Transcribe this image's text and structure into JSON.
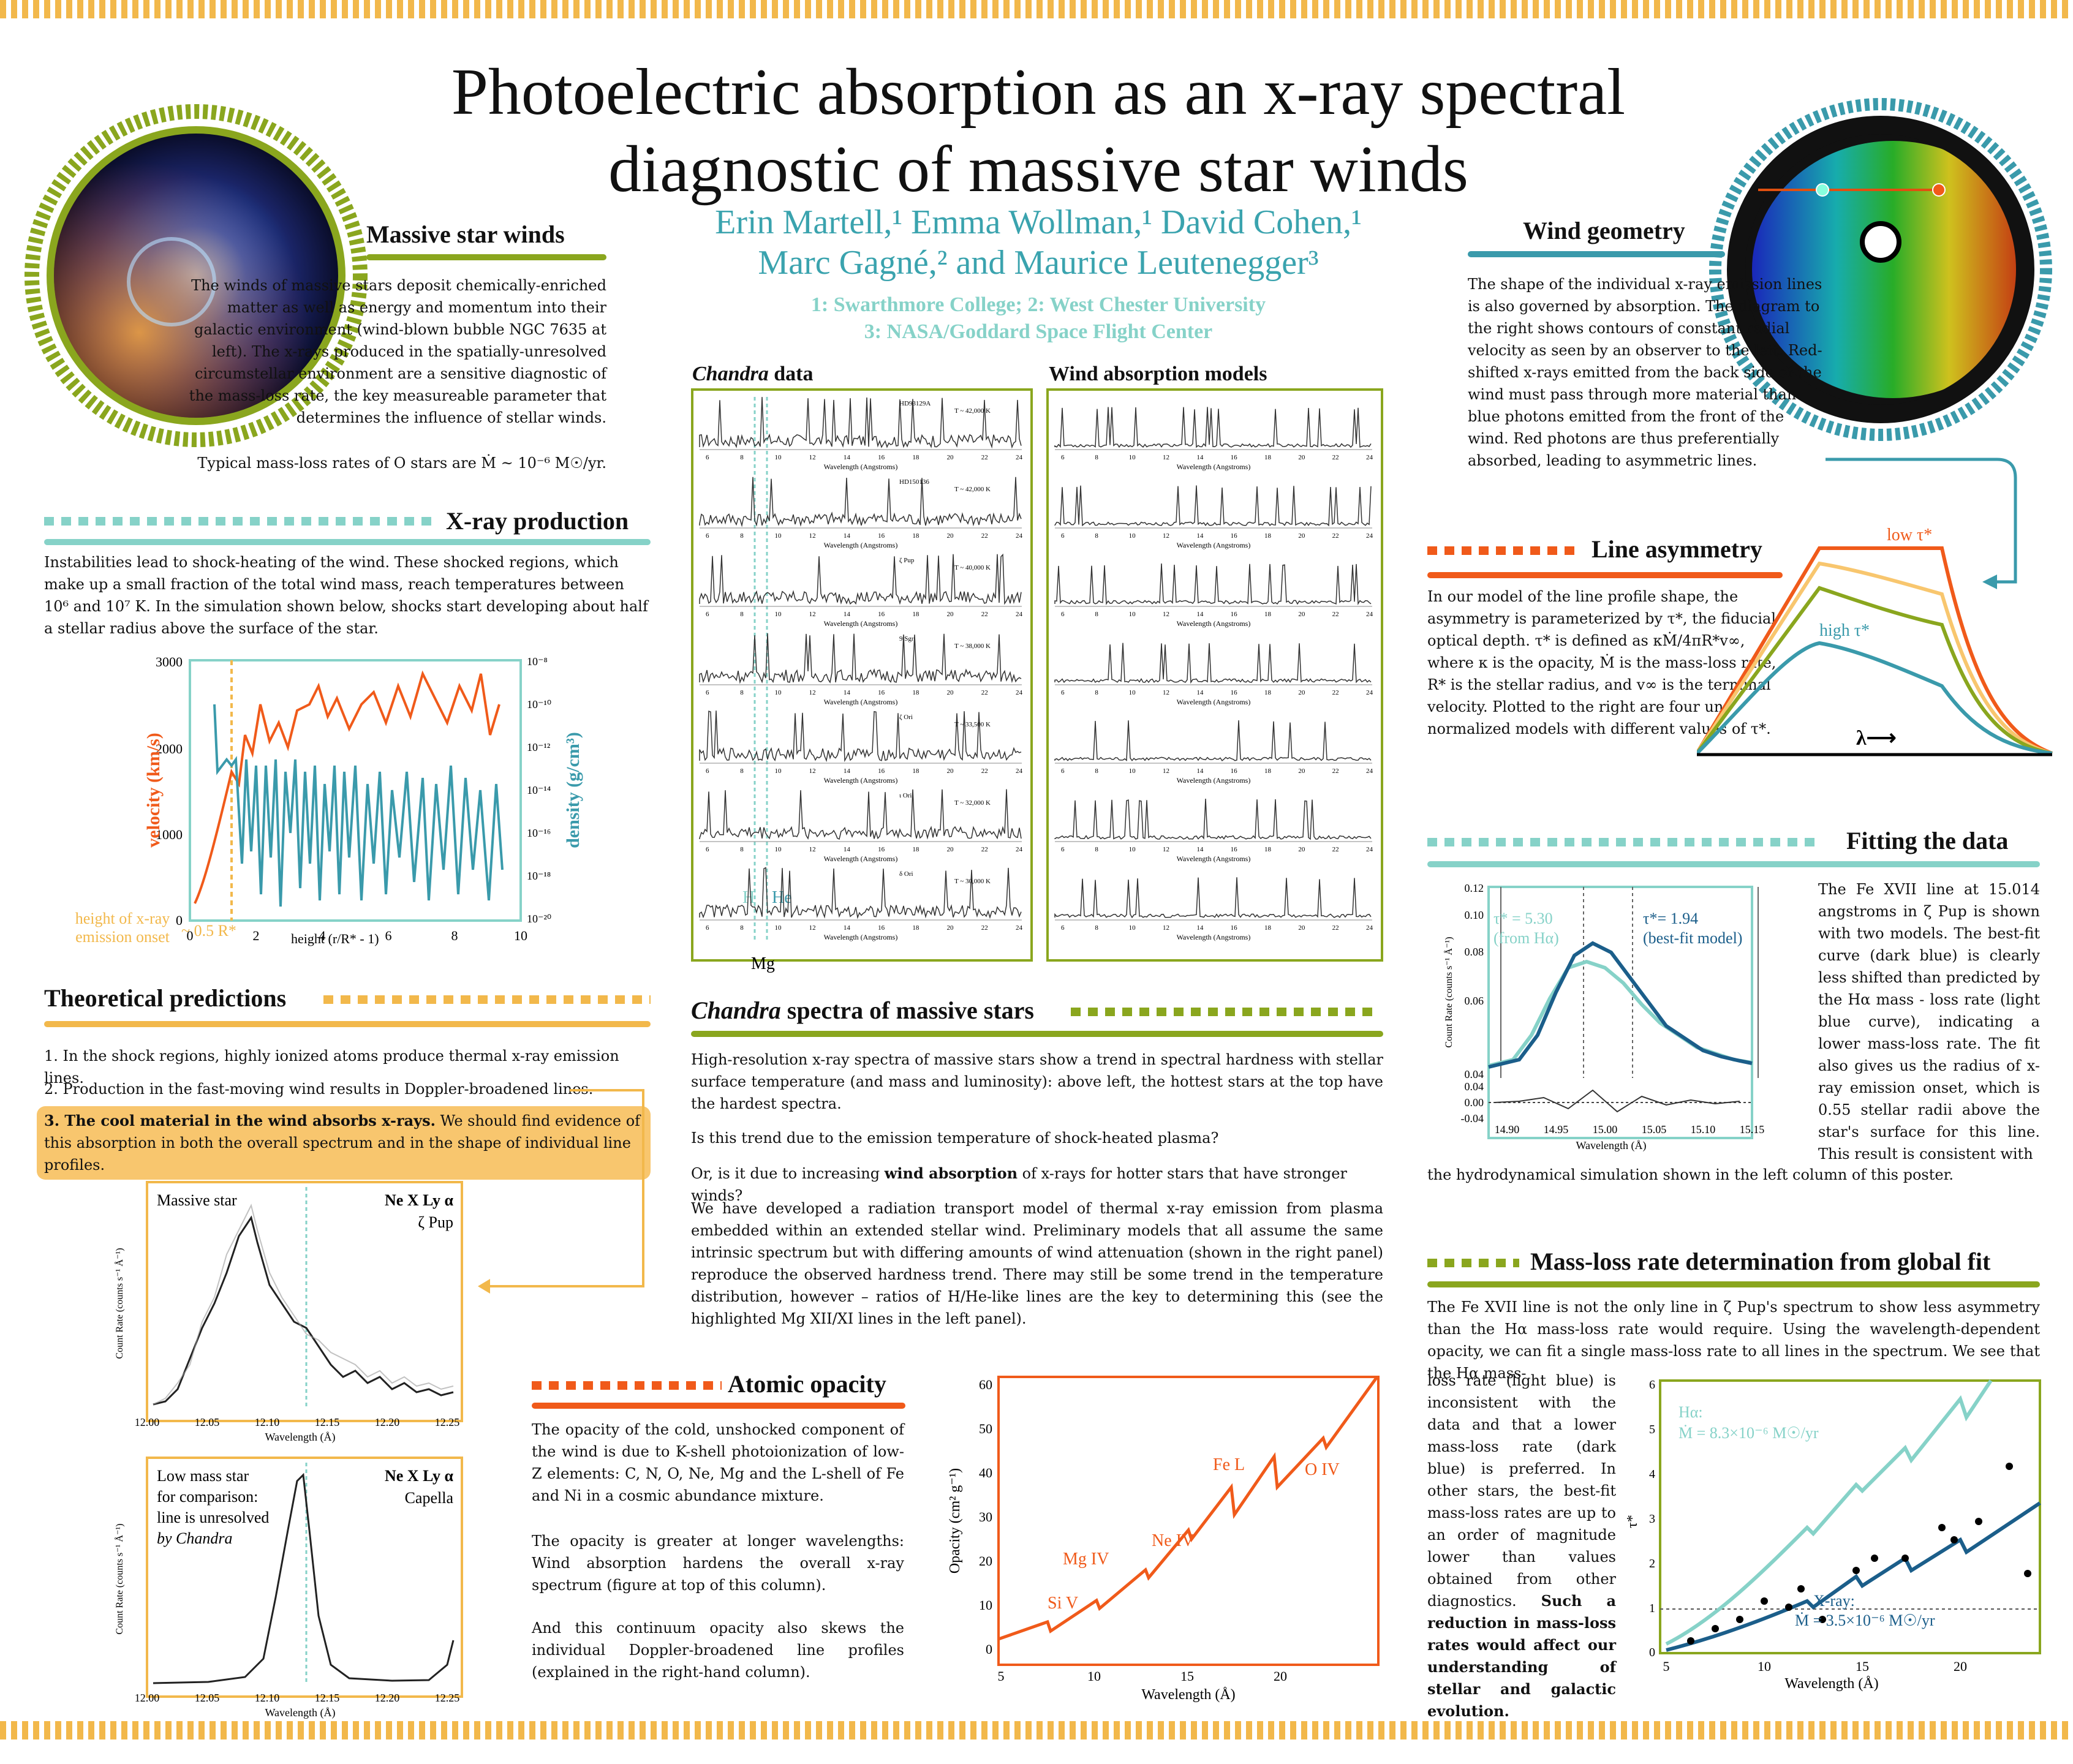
{
  "colors": {
    "orange": "#f05a1a",
    "teal": "#3a9aab",
    "lightteal": "#86d2c8",
    "olive": "#8aa61e",
    "gold": "#f2b84b"
  },
  "title": {
    "line1": "Photoelectric absorption as an x-ray spectral",
    "line2": "diagnostic of massive star winds"
  },
  "authors": {
    "line1": "Erin Martell,¹  Emma Wollman,¹  David Cohen,¹",
    "line2": "Marc Gagné,² and Maurice Leutenegger³"
  },
  "affiliations": {
    "line1": "1: Swarthmore College; 2: West Chester University",
    "line2": "3: NASA/Goddard Space Flight Center"
  },
  "massive": {
    "heading": "Massive star winds",
    "body": "The winds of massive stars deposit chemically-enriched matter as well as energy and momentum into their galactic environment (wind-blown bubble NGC 7635 at left). The x-rays produced in the spatially-unresolved circumstellar environment are a sensitive diagnostic of the mass-loss rate, the key measureable parameter that determines the influence of stellar winds.",
    "last": "Typical mass-loss rates of O stars are Ṁ ~ 10⁻⁶ M☉/yr."
  },
  "xray": {
    "heading": "X-ray production",
    "body": "Instabilities lead to shock-heating of the wind. These shocked regions, which make up a small fraction of the total wind mass, reach temperatures between 10⁶ and 10⁷ K. In the simulation shown below, shocks start developing about half a stellar radius above the surface of the star.",
    "ylabel_left": "velocity (km/s)",
    "ylabel_right": "density (g/cm³)",
    "xlabel": "height (r/R* - 1)",
    "onset1": "height of x-ray",
    "onset2": "emission onset",
    "onset3": "~ 0.5 R*",
    "yticks": [
      "3000",
      "2000",
      "1000",
      "0"
    ],
    "xticks": [
      "0",
      "2",
      "4",
      "6",
      "8",
      "10"
    ],
    "rticks": [
      "10⁻⁸",
      "10⁻¹⁰",
      "10⁻¹²",
      "10⁻¹⁴",
      "10⁻¹⁶",
      "10⁻¹⁸",
      "10⁻²⁰"
    ]
  },
  "theory": {
    "heading": "Theoretical predictions",
    "p1": "1. In the shock regions, highly ionized atoms produce thermal x-ray emission lines.",
    "p2": "2. Production in the fast-moving wind results in Doppler-broadened lines.",
    "p3b": "3. The cool material in the wind absorbs x-rays.",
    "p3": " We should find evidence of this absorption in both the overall spectrum and in the shape of individual line profiles.",
    "panel1": {
      "name": "Massive star",
      "line": "Ne X Ly α",
      "star": "ζ Pup"
    },
    "panel2": {
      "l1": "Low mass star",
      "l2": "for comparison:",
      "l3": "line is unresolved",
      "l4": "by Chandra",
      "line": "Ne X Ly α",
      "star": "Capella"
    },
    "xticks": [
      "12.00",
      "12.05",
      "12.10",
      "12.15",
      "12.20",
      "12.25"
    ],
    "xlabel": "Wavelength (Å)",
    "ylabel": "Count Rate (counts s⁻¹ Å⁻¹)"
  },
  "center": {
    "chandra_title": "Chandra",
    "chandra_rest": " data",
    "models_title": "Wind absorption models",
    "mg": "Mg",
    "h": "H",
    "he": "He",
    "xaxis": "Wavelength (Angstroms)",
    "ticks": [
      "6",
      "8",
      "10",
      "12",
      "14",
      "16",
      "18",
      "20",
      "22",
      "24"
    ],
    "stars": [
      {
        "name": "HD93129A",
        "teff": "T ~ 42,000 K"
      },
      {
        "name": "HD150136",
        "teff": "T ~ 42,000 K"
      },
      {
        "name": "ζ Pup",
        "teff": "T ~ 40,000 K"
      },
      {
        "name": "9 Sgr",
        "teff": "T ~ 38,000 K"
      },
      {
        "name": "ζ Ori",
        "teff": "T ~ 33,500 K"
      },
      {
        "name": "ι Ori",
        "teff": "T ~ 32,000 K"
      },
      {
        "name": "δ Ori",
        "teff": "T ~ 30,000 K"
      }
    ]
  },
  "spectra": {
    "heading_i": "Chandra",
    "heading": " spectra of massive stars",
    "p1": "High-resolution x-ray spectra of massive stars show a trend in spectral hardness with stellar surface temperature (and mass and luminosity): above left, the hottest stars at the top have the hardest spectra.",
    "p2": "Is this trend due to the emission temperature of shock-heated plasma?",
    "p3a": "Or, is it due to increasing ",
    "p3b": "wind absorption",
    "p3c": " of x-rays for hotter stars that have stronger winds?",
    "p4": "We have developed a radiation transport model of thermal x-ray emission from plasma embedded within an extended stellar wind.  Preliminary models that all assume the same intrinsic spectrum but with differing amounts of wind attenuation (shown in the right panel) reproduce the observed hardness trend.   There may still be some trend in the temperature distribution, however – ratios of H/He-like lines are the key to determining this (see the highlighted Mg XII/XI lines in the left panel)."
  },
  "opacity": {
    "heading": "Atomic opacity",
    "p1": "The opacity of the cold, unshocked component of the wind is due to K-shell photoionization of low-Z elements: C, N, O, Ne, Mg and the L-shell of Fe and Ni in a cosmic abundance mixture.",
    "p2": "The opacity is greater at longer wavelengths: Wind absorption hardens the overall x-ray spectrum (figure at top of this column).",
    "p3": "And this continuum opacity also skews the individual Doppler-broadened line profiles (explained in the right-hand column).",
    "ylabel": "Opacity (cm² g⁻¹)",
    "xlabel": "Wavelength (Å)",
    "labels": [
      "Si V",
      "Mg IV",
      "Ne IV",
      "Fe L",
      "O IV"
    ],
    "yticks": [
      "0",
      "10",
      "20",
      "30",
      "40",
      "50",
      "60"
    ],
    "xticks": [
      "5",
      "10",
      "15",
      "20"
    ]
  },
  "geometry": {
    "heading": "Wind geometry",
    "body": "The shape of the individual x-ray emission lines is also governed by absorption. The diagram to the right shows contours of constant radial velocity as seen by an observer to the left. Red-shifted x-rays emitted from the back side of the wind must pass through more material than blue photons emitted from the front of the wind. Red photons are thus preferentially absorbed, leading to asymmetric lines."
  },
  "asym": {
    "heading": "Line asymmetry",
    "body": "In our model of the line profile shape, the asymmetry is parameterized by τ*, the fiducial optical depth. τ* is defined as κṀ/4πR*v∞, where κ is the opacity, Ṁ is the mass-loss rate, R* is the stellar radius, and v∞ is the terminal velocity. Plotted to the right are four un-normalized models with different values of τ*.",
    "low": "low τ*",
    "high": "high τ*",
    "lambda": "λ⟶"
  },
  "fitting": {
    "heading": "Fitting the data",
    "body": "The Fe XVII line at 15.014 angstroms in ζ Pup is shown with two models. The best-fit curve (dark blue) is clearly less shifted than predicted by the Hα mass - loss rate (light blue curve), indicating a lower mass-loss rate. The fit also gives us the radius of x-ray emission onset, which is 0.55 stellar radii above the star's surface for this line. This result is consistent with",
    "tail": "the hydrodynamical simulation shown in the left column of this poster.",
    "t1": "τ* = 5.30",
    "t1b": "(from Hα)",
    "t2": "τ*= 1.94",
    "t2b": "(best-fit model)",
    "xlabel": "Wavelength (Å)",
    "ylabel": "Count Rate (counts s⁻¹ Å⁻¹)",
    "xticks": [
      "14.90",
      "14.95",
      "15.00",
      "15.05",
      "15.10",
      "15.15"
    ],
    "yticks": [
      "0.12",
      "0.10",
      "0.08",
      "0.06",
      "0.04"
    ],
    "rticks": [
      "0.04",
      "0.00",
      "-0.04"
    ]
  },
  "massloss": {
    "heading": "Mass-loss rate determination from global fit",
    "p1": "The Fe XVII line is not the only line in ζ Pup's spectrum to show less asymmetry than the Hα mass-loss rate would require. Using the wavelength-dependent opacity, we can fit a single mass-loss rate to all lines in the spectrum. We see that the Hα mass-",
    "p2": "loss rate (light blue) is inconsistent with the data and that a lower mass-loss rate (dark blue) is preferred. In other stars, the best-fit mass-loss rates are up to an order of magnitude lower than values obtained from other diagnostics.",
    "p2b": " Such a reduction in mass-loss rates would affect our understanding of stellar and galactic evolution.",
    "ha": "Hα:",
    "ha2": "Ṁ = 8.3×10⁻⁶ M☉/yr",
    "xr": "X-ray:",
    "xr2": "Ṁ = 3.5×10⁻⁶ M☉/yr",
    "xlabel": "Wavelength (Å)",
    "ylabel": "τ*",
    "yticks": [
      "0",
      "1",
      "2",
      "3",
      "4",
      "5",
      "6"
    ],
    "xticks": [
      "5",
      "10",
      "15",
      "20"
    ]
  }
}
